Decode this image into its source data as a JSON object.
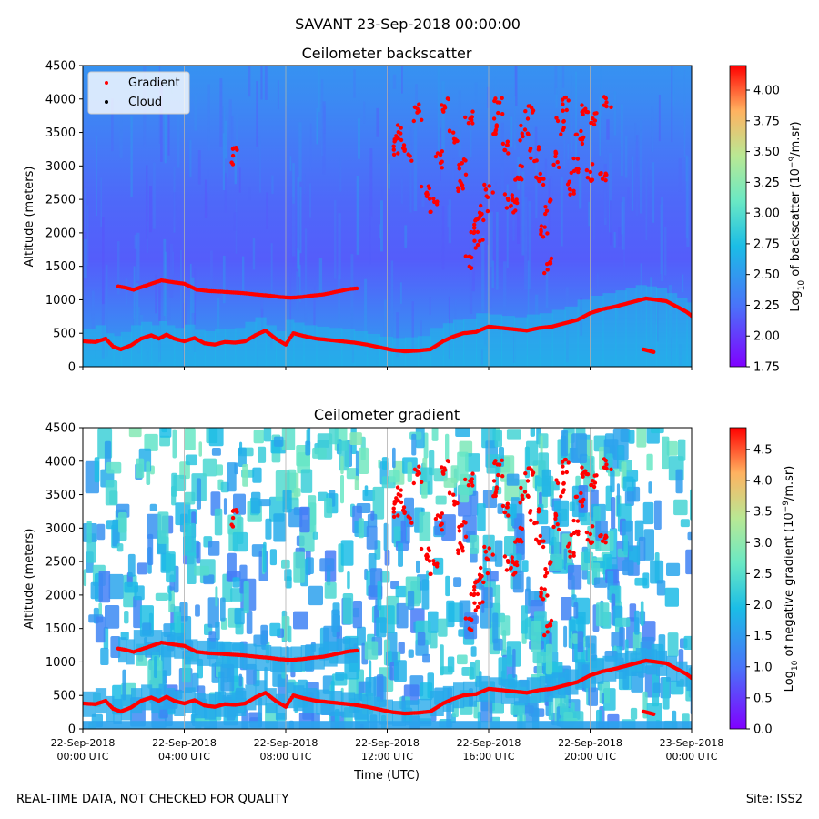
{
  "suptitle": "SAVANT 23-Sep-2018 00:00:00",
  "footer_left": "REAL-TIME DATA, NOT CHECKED FOR QUALITY",
  "footer_right": "Site: ISS2",
  "colors": {
    "marker": "#ff0000",
    "cloud": "#000000",
    "gridline": "#b0b0b0",
    "colormap": "rainbow"
  },
  "chart_data": [
    {
      "type": "heatmap",
      "title": "Ceilometer backscatter",
      "ylabel": "Altitude (meters)",
      "ylim": [
        0,
        4500
      ],
      "yticks": [
        "0",
        "500",
        "1000",
        "1500",
        "2000",
        "2500",
        "3000",
        "3500",
        "4000",
        "4500"
      ],
      "xlim_hours": [
        0,
        24
      ],
      "xticks_hours": [
        0,
        4,
        8,
        12,
        16,
        20,
        24
      ],
      "x_grid": true,
      "legend": {
        "placement": "upper-left",
        "entries": [
          "Gradient",
          "Cloud"
        ]
      },
      "colorbar": {
        "label_prefix": "Log",
        "label_sub": "10",
        "label_mid": " of backscatter (10",
        "label_sup": "−9",
        "label_suffix": "/m.sr)",
        "range": [
          1.75,
          4.2
        ],
        "ticks": [
          "1.75",
          "2.00",
          "2.25",
          "2.50",
          "2.75",
          "3.00",
          "3.25",
          "3.50",
          "3.75",
          "4.00"
        ]
      },
      "background_profile": [
        {
          "alt": 0,
          "value": 2.55
        },
        {
          "alt": 400,
          "value": 2.45
        },
        {
          "alt": 700,
          "value": 2.35
        },
        {
          "alt": 1200,
          "value": 2.22
        },
        {
          "alt": 1600,
          "value": 2.15
        },
        {
          "alt": 2500,
          "value": 2.2
        },
        {
          "alt": 3200,
          "value": 2.28
        },
        {
          "alt": 4000,
          "value": 2.4
        },
        {
          "alt": 4500,
          "value": 2.45
        }
      ]
    },
    {
      "type": "heatmap",
      "title": "Ceilometer gradient",
      "ylabel": "Altitude (meters)",
      "xlabel": "Time (UTC)",
      "ylim": [
        0,
        4500
      ],
      "yticks": [
        "0",
        "500",
        "1000",
        "1500",
        "2000",
        "2500",
        "3000",
        "3500",
        "4000",
        "4500"
      ],
      "xlim_hours": [
        0,
        24
      ],
      "xticks_hours": [
        0,
        4,
        8,
        12,
        16,
        20,
        24
      ],
      "xtick_labels": [
        [
          "22-Sep-2018",
          "00:00 UTC"
        ],
        [
          "22-Sep-2018",
          "04:00 UTC"
        ],
        [
          "22-Sep-2018",
          "08:00 UTC"
        ],
        [
          "22-Sep-2018",
          "12:00 UTC"
        ],
        [
          "22-Sep-2018",
          "16:00 UTC"
        ],
        [
          "22-Sep-2018",
          "20:00 UTC"
        ],
        [
          "23-Sep-2018",
          "00:00 UTC"
        ]
      ],
      "x_grid": true,
      "colorbar": {
        "label_prefix": "Log",
        "label_sub": "10",
        "label_mid": " of negative gradient (10",
        "label_sup": "−9",
        "label_suffix": "/m.sr)",
        "range": [
          0,
          4.85
        ],
        "ticks": [
          "0.0",
          "0.5",
          "1.0",
          "1.5",
          "2.0",
          "2.5",
          "3.0",
          "3.5",
          "4.0",
          "4.5"
        ]
      }
    }
  ],
  "gradient_series": {
    "name": "Gradient",
    "mixed_layer": [
      [
        0,
        380
      ],
      [
        0.5,
        370
      ],
      [
        0.9,
        420
      ],
      [
        1.2,
        300
      ],
      [
        1.5,
        260
      ],
      [
        1.9,
        320
      ],
      [
        2.3,
        420
      ],
      [
        2.7,
        470
      ],
      [
        3.0,
        420
      ],
      [
        3.3,
        480
      ],
      [
        3.6,
        420
      ],
      [
        4.0,
        380
      ],
      [
        4.4,
        430
      ],
      [
        4.8,
        350
      ],
      [
        5.2,
        330
      ],
      [
        5.6,
        370
      ],
      [
        6.0,
        360
      ],
      [
        6.4,
        380
      ],
      [
        6.8,
        470
      ],
      [
        7.2,
        540
      ],
      [
        7.6,
        420
      ],
      [
        8.0,
        330
      ],
      [
        8.3,
        500
      ],
      [
        8.7,
        460
      ],
      [
        9.2,
        420
      ],
      [
        9.7,
        400
      ],
      [
        10.2,
        380
      ],
      [
        10.7,
        360
      ],
      [
        11.2,
        330
      ],
      [
        11.7,
        290
      ],
      [
        12.2,
        250
      ],
      [
        12.7,
        230
      ],
      [
        13.2,
        240
      ],
      [
        13.7,
        260
      ],
      [
        14.2,
        380
      ],
      [
        14.6,
        450
      ],
      [
        15.0,
        500
      ],
      [
        15.5,
        520
      ],
      [
        16.0,
        600
      ],
      [
        16.5,
        580
      ],
      [
        17.0,
        560
      ],
      [
        17.5,
        540
      ],
      [
        18.0,
        580
      ],
      [
        18.5,
        600
      ],
      [
        19.0,
        650
      ],
      [
        19.5,
        700
      ],
      [
        20.0,
        800
      ],
      [
        20.5,
        860
      ],
      [
        21.0,
        900
      ],
      [
        21.4,
        940
      ],
      [
        21.8,
        980
      ],
      [
        22.2,
        1020
      ],
      [
        22.6,
        1000
      ],
      [
        23.0,
        980
      ],
      [
        23.4,
        900
      ],
      [
        23.8,
        820
      ],
      [
        24.0,
        760
      ]
    ],
    "residual_layer": [
      [
        1.4,
        1200
      ],
      [
        1.7,
        1180
      ],
      [
        2.0,
        1150
      ],
      [
        3.1,
        1290
      ],
      [
        3.6,
        1260
      ],
      [
        4.0,
        1240
      ],
      [
        4.5,
        1150
      ],
      [
        5.0,
        1130
      ],
      [
        5.5,
        1120
      ],
      [
        6.3,
        1100
      ],
      [
        6.8,
        1080
      ],
      [
        7.4,
        1060
      ],
      [
        7.8,
        1040
      ],
      [
        8.2,
        1030
      ],
      [
        8.6,
        1040
      ],
      [
        9.0,
        1060
      ],
      [
        9.5,
        1080
      ],
      [
        10.0,
        1120
      ],
      [
        10.5,
        1160
      ],
      [
        10.8,
        1170
      ]
    ],
    "upper_clouds": [
      [
        6.0,
        3150
      ],
      [
        12.3,
        3300
      ],
      [
        12.5,
        3500
      ],
      [
        12.8,
        3200
      ],
      [
        13.2,
        3800
      ],
      [
        13.5,
        2600
      ],
      [
        13.8,
        2400
      ],
      [
        14.0,
        3100
      ],
      [
        14.3,
        3900
      ],
      [
        14.6,
        3400
      ],
      [
        14.9,
        2700
      ],
      [
        15.0,
        3000
      ],
      [
        15.2,
        3700
      ],
      [
        15.4,
        2100
      ],
      [
        15.6,
        1900
      ],
      [
        15.8,
        2300
      ],
      [
        16.0,
        2600
      ],
      [
        16.2,
        3600
      ],
      [
        16.4,
        3900
      ],
      [
        16.6,
        3300
      ],
      [
        16.8,
        2500
      ],
      [
        17.0,
        2400
      ],
      [
        17.2,
        2900
      ],
      [
        17.4,
        3500
      ],
      [
        17.6,
        3800
      ],
      [
        17.8,
        3200
      ],
      [
        18.0,
        2800
      ],
      [
        18.2,
        2000
      ],
      [
        18.4,
        2400
      ],
      [
        18.6,
        3100
      ],
      [
        18.8,
        3600
      ],
      [
        19.0,
        3900
      ],
      [
        19.2,
        2700
      ],
      [
        19.4,
        3000
      ],
      [
        19.6,
        3400
      ],
      [
        19.8,
        3800
      ],
      [
        20.0,
        2900
      ],
      [
        20.2,
        3700
      ],
      [
        20.5,
        2800
      ],
      [
        20.7,
        3950
      ],
      [
        18.3,
        1500
      ],
      [
        15.2,
        1600
      ]
    ],
    "late_low": [
      [
        22.1,
        260
      ],
      [
        22.3,
        240
      ],
      [
        22.5,
        220
      ]
    ]
  }
}
